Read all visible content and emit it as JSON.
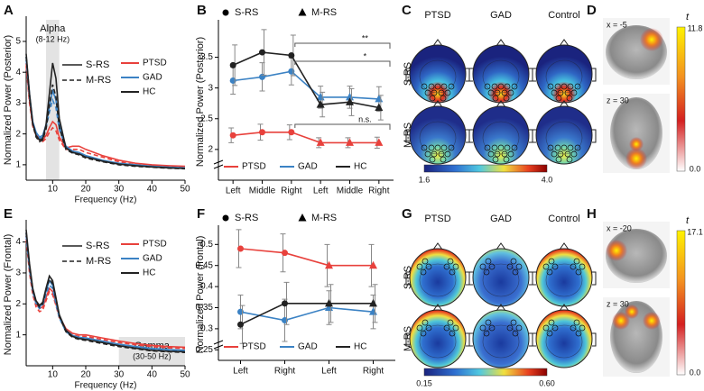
{
  "chart_data": [
    {
      "type": "line",
      "panel": "A",
      "y_label": "Normalized Power (Posterior)",
      "x_label": "Frequency (Hz)",
      "band": {
        "range": [
          8,
          12
        ],
        "label": "Alpha",
        "sublabel": "(8-12 Hz)"
      },
      "xlim": [
        2,
        50
      ],
      "xticks": [
        10,
        20,
        30,
        40,
        50
      ],
      "ylim": [
        0.5,
        5.7
      ],
      "yticks": [
        1,
        2,
        3,
        4,
        5
      ],
      "conditions": [
        {
          "name": "S-RS",
          "dash": false
        },
        {
          "name": "M-RS",
          "dash": true
        }
      ],
      "groups": [
        {
          "name": "PTSD",
          "color": "#e8413c"
        },
        {
          "name": "GAD",
          "color": "#3b82c4"
        },
        {
          "name": "HC",
          "color": "#222222"
        }
      ],
      "x": [
        2,
        3,
        4,
        5,
        6,
        7,
        8,
        9,
        10,
        11,
        12,
        14,
        16,
        18,
        20,
        25,
        30,
        35,
        40,
        45,
        50
      ],
      "series": [
        {
          "group": "PTSD",
          "condition": "S-RS",
          "values": [
            4.3,
            3.1,
            2.3,
            2.0,
            1.85,
            1.8,
            1.95,
            2.2,
            2.4,
            2.3,
            1.9,
            1.55,
            1.6,
            1.6,
            1.5,
            1.3,
            1.15,
            1.05,
            1.0,
            0.97,
            0.95
          ]
        },
        {
          "group": "PTSD",
          "condition": "M-RS",
          "values": [
            4.2,
            3.0,
            2.25,
            1.95,
            1.8,
            1.75,
            1.85,
            2.05,
            2.2,
            2.1,
            1.8,
            1.5,
            1.5,
            1.5,
            1.4,
            1.25,
            1.1,
            1.0,
            0.97,
            0.94,
            0.92
          ]
        },
        {
          "group": "GAD",
          "condition": "S-RS",
          "values": [
            4.5,
            3.3,
            2.4,
            2.05,
            1.9,
            1.95,
            2.3,
            2.9,
            3.4,
            3.1,
            2.3,
            1.6,
            1.45,
            1.4,
            1.3,
            1.15,
            1.05,
            1.0,
            0.95,
            0.92,
            0.9
          ]
        },
        {
          "group": "GAD",
          "condition": "M-RS",
          "values": [
            4.4,
            3.2,
            2.35,
            2.0,
            1.85,
            1.9,
            2.2,
            2.7,
            3.1,
            2.85,
            2.15,
            1.55,
            1.4,
            1.35,
            1.28,
            1.12,
            1.02,
            0.97,
            0.93,
            0.9,
            0.88
          ]
        },
        {
          "group": "HC",
          "condition": "S-RS",
          "values": [
            4.6,
            3.3,
            2.35,
            1.95,
            1.8,
            1.85,
            2.3,
            3.3,
            4.3,
            3.8,
            2.5,
            1.55,
            1.4,
            1.35,
            1.25,
            1.12,
            1.02,
            0.97,
            0.93,
            0.9,
            0.88
          ]
        },
        {
          "group": "HC",
          "condition": "M-RS",
          "values": [
            4.5,
            3.2,
            2.3,
            1.9,
            1.75,
            1.8,
            2.15,
            2.9,
            3.6,
            3.2,
            2.2,
            1.5,
            1.38,
            1.32,
            1.22,
            1.1,
            1.0,
            0.95,
            0.92,
            0.89,
            0.87
          ]
        }
      ]
    },
    {
      "type": "errorbar",
      "panel": "B",
      "y_label": "Normalized Power (Posterior)",
      "ylim": [
        1.5,
        4.05
      ],
      "yticks": [
        2,
        2.5,
        3,
        3.5
      ],
      "conditions": [
        {
          "name": "S-RS",
          "marker": "circle",
          "categories": [
            "Left",
            "Middle",
            "Right"
          ]
        },
        {
          "name": "M-RS",
          "marker": "triangle",
          "categories": [
            "Left",
            "Middle",
            "Right"
          ]
        }
      ],
      "series": [
        {
          "name": "PTSD",
          "color": "#e8413c",
          "values": [
            2.23,
            2.28,
            2.28,
            2.11,
            2.11,
            2.11
          ],
          "errors": [
            0.12,
            0.13,
            0.12,
            0.08,
            0.08,
            0.09
          ]
        },
        {
          "name": "GAD",
          "color": "#3b82c4",
          "values": [
            3.12,
            3.18,
            3.27,
            2.85,
            2.85,
            2.82
          ],
          "errors": [
            0.22,
            0.23,
            0.22,
            0.18,
            0.18,
            0.2
          ]
        },
        {
          "name": "HC",
          "color": "#222222",
          "values": [
            3.37,
            3.58,
            3.53,
            2.73,
            2.77,
            2.68
          ],
          "errors": [
            0.33,
            0.37,
            0.33,
            0.2,
            0.22,
            0.2
          ]
        }
      ],
      "annotations": [
        "**",
        "*",
        "n.s."
      ]
    },
    {
      "type": "line",
      "panel": "E",
      "y_label": "Normalized Power (Frontal)",
      "x_label": "Frequency (Hz)",
      "band": {
        "range": [
          30,
          50
        ],
        "label": "Gamma",
        "sublabel": "(30-50 Hz)"
      },
      "xlim": [
        2,
        50
      ],
      "xticks": [
        10,
        20,
        30,
        40,
        50
      ],
      "ylim": [
        0,
        4.6
      ],
      "yticks": [
        1,
        2,
        3,
        4
      ],
      "conditions": [
        {
          "name": "S-RS",
          "dash": false
        },
        {
          "name": "M-RS",
          "dash": true
        }
      ],
      "groups": [
        {
          "name": "PTSD",
          "color": "#e8413c"
        },
        {
          "name": "GAD",
          "color": "#3b82c4"
        },
        {
          "name": "HC",
          "color": "#222222"
        }
      ],
      "x": [
        2,
        3,
        4,
        5,
        6,
        7,
        8,
        9,
        10,
        11,
        12,
        14,
        16,
        18,
        20,
        25,
        30,
        35,
        40,
        45,
        50
      ],
      "series": [
        {
          "group": "PTSD",
          "condition": "S-RS",
          "values": [
            4.2,
            3.1,
            2.4,
            2.0,
            1.85,
            1.9,
            2.2,
            2.5,
            2.4,
            2.0,
            1.6,
            1.2,
            1.05,
            1.0,
            1.0,
            0.9,
            0.8,
            0.72,
            0.66,
            0.62,
            0.6
          ]
        },
        {
          "group": "PTSD",
          "condition": "M-RS",
          "values": [
            4.1,
            3.0,
            2.3,
            1.9,
            1.75,
            1.8,
            2.1,
            2.4,
            2.3,
            1.95,
            1.55,
            1.15,
            1.0,
            0.95,
            0.95,
            0.85,
            0.75,
            0.68,
            0.62,
            0.58,
            0.56
          ]
        },
        {
          "group": "GAD",
          "condition": "S-RS",
          "values": [
            4.3,
            3.2,
            2.45,
            2.05,
            1.9,
            2.0,
            2.4,
            2.75,
            2.6,
            2.1,
            1.6,
            1.15,
            0.98,
            0.92,
            0.9,
            0.8,
            0.7,
            0.62,
            0.56,
            0.52,
            0.5
          ]
        },
        {
          "group": "GAD",
          "condition": "M-RS",
          "values": [
            4.2,
            3.1,
            2.4,
            2.0,
            1.85,
            1.95,
            2.3,
            2.6,
            2.5,
            2.0,
            1.55,
            1.1,
            0.95,
            0.9,
            0.87,
            0.77,
            0.67,
            0.6,
            0.54,
            0.5,
            0.48
          ]
        },
        {
          "group": "HC",
          "condition": "S-RS",
          "values": [
            4.4,
            3.3,
            2.5,
            2.1,
            1.95,
            2.05,
            2.5,
            2.9,
            2.75,
            2.2,
            1.65,
            1.15,
            0.95,
            0.88,
            0.85,
            0.75,
            0.65,
            0.57,
            0.5,
            0.47,
            0.45
          ]
        },
        {
          "group": "HC",
          "condition": "M-RS",
          "values": [
            4.3,
            3.2,
            2.45,
            2.05,
            1.9,
            2.0,
            2.45,
            2.8,
            2.65,
            2.15,
            1.6,
            1.1,
            0.92,
            0.85,
            0.82,
            0.72,
            0.62,
            0.55,
            0.48,
            0.45,
            0.43
          ]
        }
      ]
    },
    {
      "type": "errorbar",
      "panel": "F",
      "y_label": "Normalized Power (frontal)",
      "ylim": [
        0.225,
        0.537
      ],
      "yticks": [
        0.25,
        0.3,
        0.35,
        0.4,
        0.45,
        0.5
      ],
      "conditions": [
        {
          "name": "S-RS",
          "marker": "circle",
          "categories": [
            "Left",
            "Right"
          ]
        },
        {
          "name": "M-RS",
          "marker": "triangle",
          "categories": [
            "Left",
            "Right"
          ]
        }
      ],
      "series": [
        {
          "name": "PTSD",
          "color": "#e8413c",
          "values": [
            0.49,
            0.48,
            0.45,
            0.45
          ],
          "errors": [
            0.045,
            0.045,
            0.05,
            0.05
          ]
        },
        {
          "name": "GAD",
          "color": "#3b82c4",
          "values": [
            0.34,
            0.32,
            0.35,
            0.34
          ],
          "errors": [
            0.04,
            0.05,
            0.04,
            0.04
          ]
        },
        {
          "name": "HC",
          "color": "#222222",
          "values": [
            0.31,
            0.36,
            0.36,
            0.36
          ],
          "errors": [
            0.045,
            0.05,
            0.045,
            0.045
          ]
        }
      ]
    }
  ],
  "topomaps": [
    {
      "panel": "C",
      "columns": [
        "PTSD",
        "GAD",
        "Control"
      ],
      "rows": [
        "S-RS",
        "M-RS"
      ],
      "scale_min": "1.6",
      "scale_max": "4.0"
    },
    {
      "panel": "G",
      "columns": [
        "PTSD",
        "GAD",
        "Control"
      ],
      "rows": [
        "S-RS",
        "M-RS"
      ],
      "scale_min": "0.15",
      "scale_max": "0.60"
    }
  ],
  "brain_maps": [
    {
      "panel": "D",
      "stat": "t",
      "slices": [
        "x = -5",
        "z = 30"
      ],
      "scale_max": "11.8",
      "scale_min": "0.0"
    },
    {
      "panel": "H",
      "stat": "t",
      "slices": [
        "x = -20",
        "z = 30"
      ],
      "scale_max": "17.1",
      "scale_min": "0.0"
    }
  ]
}
